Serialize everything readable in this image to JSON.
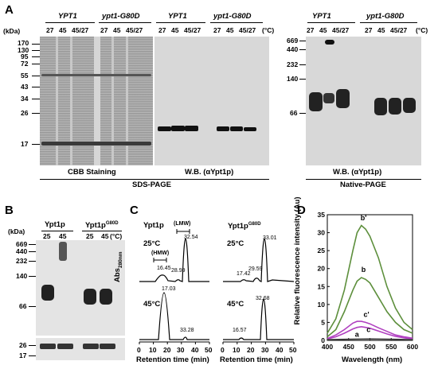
{
  "panelA": {
    "letter": "A",
    "kda": "(kDa)",
    "genotype_wt": "YPT1",
    "genotype_mut": "ypt1-G80D",
    "temps": [
      "27",
      "45",
      "45/27"
    ],
    "temp_unit": "(°C)",
    "sds_markers": [
      "170",
      "130",
      "95",
      "72",
      "55",
      "43",
      "34",
      "26",
      "17"
    ],
    "native_markers": [
      "669",
      "440",
      "232",
      "140",
      "66"
    ],
    "cbb_label": "CBB Staining",
    "wb_label": "W.B. (αYpt1p)",
    "wb_label_native": "W.B. (αYpt1p)",
    "sds_label": "SDS-PAGE",
    "native_label": "Native-PAGE"
  },
  "panelB": {
    "letter": "B",
    "kda": "(kDa)",
    "ypt1p": "Ypt1p",
    "ypt1p_mut": "Ypt1p",
    "mut_sup": "G80D",
    "temps": [
      "25",
      "45",
      "25",
      "45"
    ],
    "temp_unit": "(°C)",
    "markers": [
      "669",
      "440",
      "232",
      "140",
      "66",
      "26",
      "17"
    ]
  },
  "panelC": {
    "letter": "C",
    "ylabel": "Abs",
    "ylabel_sub": "280nm",
    "left_title": "Ypt1p",
    "right_title": "Ypt1p",
    "right_sup": "G80D",
    "lmw": "(LMW)",
    "hmw": "(HMW)",
    "temp25": "25°C",
    "temp45": "45°C",
    "left_peaks_25": [
      "16.45",
      "28.99",
      "32.54"
    ],
    "left_peaks_45": [
      "17.03",
      "33.28"
    ],
    "right_peaks_25": [
      "17.42",
      "29.59",
      "33.01"
    ],
    "right_peaks_45": [
      "16.57",
      "32.68"
    ],
    "xticks": [
      "0",
      "10",
      "20",
      "30",
      "40",
      "50"
    ],
    "xlabel": "Retention time (min)"
  },
  "panelD": {
    "letter": "D",
    "chart_data": {
      "type": "line",
      "ylabel": "Relative fluorescence intensity (Au)",
      "xlabel": "Wavelength (nm)",
      "xlim": [
        400,
        600
      ],
      "ylim": [
        0,
        35
      ],
      "xticks": [
        "400",
        "450",
        "500",
        "550",
        "600"
      ],
      "yticks": [
        "0",
        "5",
        "10",
        "15",
        "20",
        "25",
        "30",
        "35"
      ],
      "curve_labels": [
        "b'",
        "b",
        "c'",
        "c",
        "a"
      ],
      "series": [
        {
          "name": "b'",
          "color": "#5d8f3c",
          "x": [
            400,
            420,
            440,
            460,
            470,
            480,
            490,
            500,
            520,
            540,
            560,
            580,
            600
          ],
          "y": [
            2,
            6,
            14,
            25,
            30,
            32,
            31,
            29,
            23,
            15,
            9,
            5,
            3
          ]
        },
        {
          "name": "b",
          "color": "#5d8f3c",
          "x": [
            400,
            420,
            440,
            460,
            470,
            480,
            490,
            500,
            520,
            540,
            560,
            580,
            600
          ],
          "y": [
            1,
            3,
            8,
            14,
            16.5,
            17.5,
            17,
            16,
            12,
            8,
            5,
            3,
            2
          ]
        },
        {
          "name": "c'",
          "color": "#b040c0",
          "x": [
            400,
            420,
            440,
            460,
            470,
            480,
            490,
            500,
            520,
            540,
            560,
            580,
            600
          ],
          "y": [
            0.5,
            1.5,
            3,
            4.8,
            5.3,
            5.3,
            5,
            4.6,
            3.5,
            2.5,
            1.5,
            1,
            0.6
          ]
        },
        {
          "name": "c",
          "color": "#b040c0",
          "x": [
            400,
            420,
            440,
            460,
            470,
            480,
            490,
            500,
            520,
            540,
            560,
            580,
            600
          ],
          "y": [
            0.4,
            1,
            2,
            3.2,
            3.6,
            3.8,
            3.6,
            3.4,
            2.6,
            1.8,
            1.1,
            0.7,
            0.4
          ]
        },
        {
          "name": "a",
          "color": "#444444",
          "x": [
            400,
            450,
            500,
            550,
            600
          ],
          "y": [
            0.2,
            0.3,
            0.4,
            0.3,
            0.2
          ]
        }
      ]
    }
  }
}
